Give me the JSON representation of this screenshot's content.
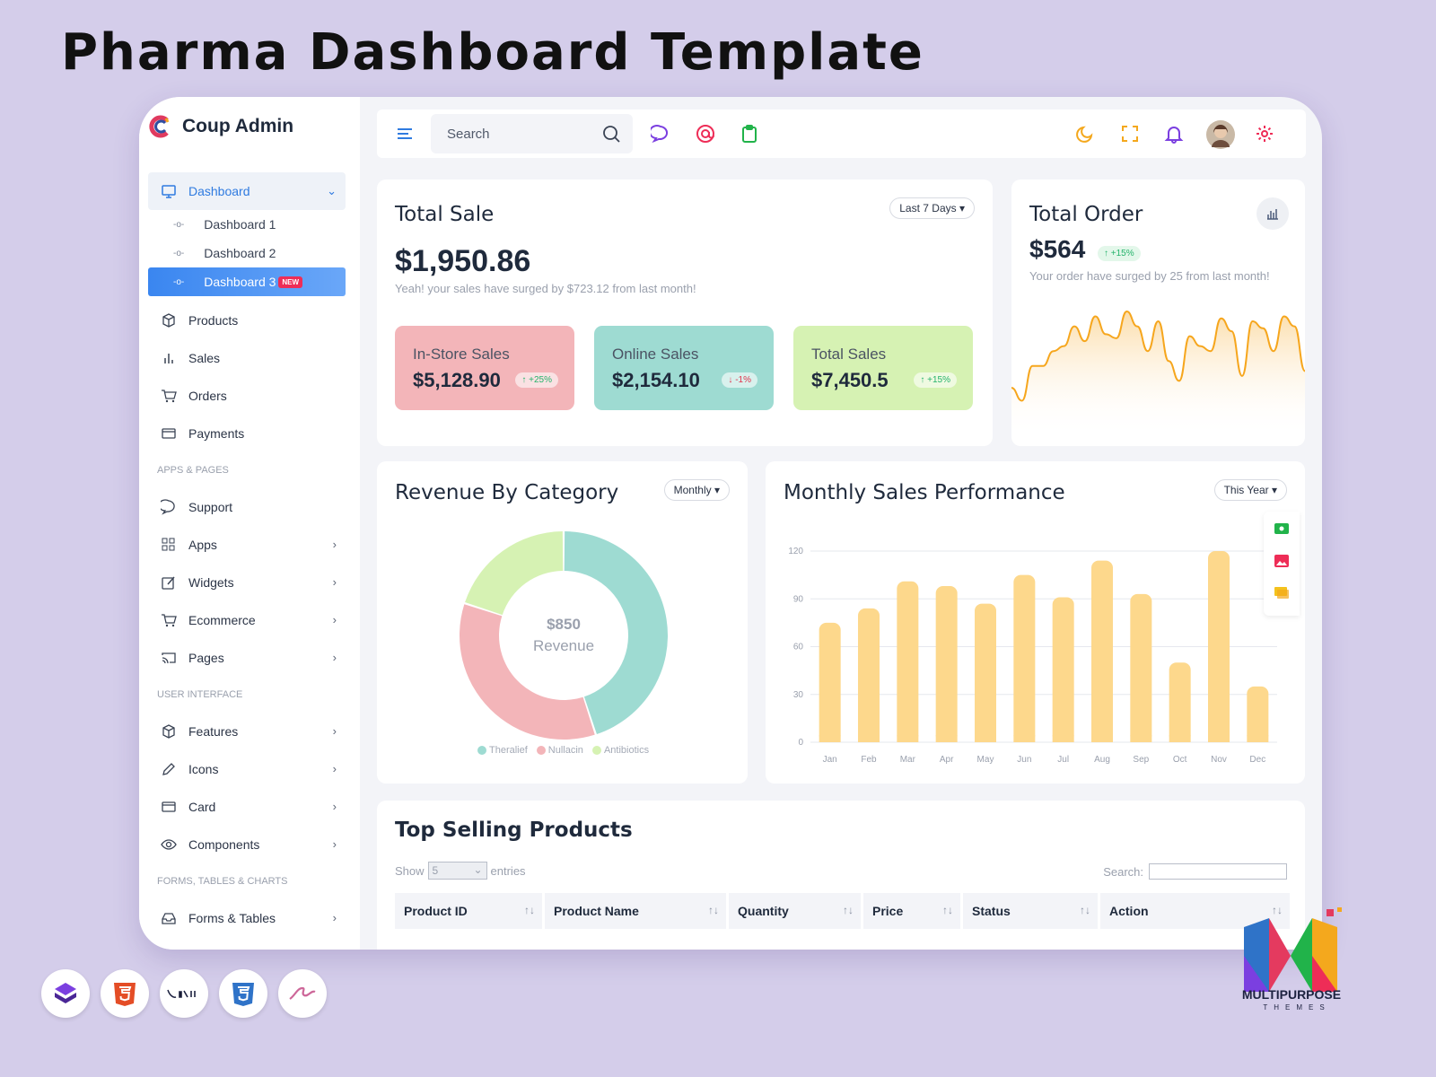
{
  "headline": "Pharma Dashboard Template",
  "brand": {
    "name": "Coup Admin"
  },
  "sidebar": {
    "dashboard": "Dashboard",
    "sub_items": [
      {
        "label": "Dashboard 1"
      },
      {
        "label": "Dashboard 2"
      },
      {
        "label": "Dashboard 3",
        "badge": "NEW"
      }
    ],
    "main_items": [
      {
        "label": "Products",
        "icon": "box-icon"
      },
      {
        "label": "Sales",
        "icon": "bar-chart-icon"
      },
      {
        "label": "Orders",
        "icon": "cart-icon"
      },
      {
        "label": "Payments",
        "icon": "card-icon"
      }
    ],
    "section_apps": "APPS & PAGES",
    "apps_items": [
      {
        "label": "Support",
        "icon": "chat-icon"
      },
      {
        "label": "Apps",
        "icon": "grid-icon"
      },
      {
        "label": "Widgets",
        "icon": "edit-icon"
      },
      {
        "label": "Ecommerce",
        "icon": "cart-icon"
      },
      {
        "label": "Pages",
        "icon": "cast-icon"
      }
    ],
    "section_ui": "USER INTERFACE",
    "ui_items": [
      {
        "label": "Features",
        "icon": "box-icon"
      },
      {
        "label": "Icons",
        "icon": "pen-icon"
      },
      {
        "label": "Card",
        "icon": "card-icon"
      },
      {
        "label": "Components",
        "icon": "eye-icon"
      }
    ],
    "section_forms": "FORMS, TABLES & CHARTS",
    "forms_items": [
      {
        "label": "Forms & Tables",
        "icon": "inbox-icon"
      }
    ]
  },
  "topbar": {
    "search_placeholder": "Search"
  },
  "total_sale": {
    "title": "Total Sale",
    "period": "Last 7 Days",
    "amount": "$1,950.86",
    "note": "Yeah! your sales have surged by $723.12 from last month!",
    "stats": [
      {
        "label": "In-Store Sales",
        "value": "$5,128.90",
        "change": "+25%",
        "dir": "up",
        "color": "#f3b5b9"
      },
      {
        "label": "Online Sales",
        "value": "$2,154.10",
        "change": "-1%",
        "dir": "down",
        "color": "#9edbd2"
      },
      {
        "label": "Total Sales",
        "value": "$7,450.5",
        "change": "+15%",
        "dir": "up",
        "color": "#d6f2b3"
      }
    ]
  },
  "total_order": {
    "title": "Total Order",
    "amount": "$564",
    "change": "+15%",
    "note": "Your order have surged by 25 from last month!"
  },
  "revenue": {
    "title": "Revenue By Category",
    "period": "Monthly",
    "center_value": "$850",
    "center_label": "Revenue",
    "legend": [
      {
        "name": "Theralief",
        "color": "#9edbd2"
      },
      {
        "name": "Nullacin",
        "color": "#f3b5b9"
      },
      {
        "name": "Antibiotics",
        "color": "#d6f2b3"
      }
    ]
  },
  "monthly": {
    "title": "Monthly Sales Performance",
    "period": "This Year"
  },
  "chart_data": [
    {
      "type": "pie",
      "title": "Revenue By Category",
      "categories": [
        "Theralief",
        "Nullacin",
        "Antibiotics"
      ],
      "values": [
        45,
        35,
        20
      ]
    },
    {
      "type": "bar",
      "title": "Monthly Sales Performance",
      "categories": [
        "Jan",
        "Feb",
        "Mar",
        "Apr",
        "May",
        "Jun",
        "Jul",
        "Aug",
        "Sep",
        "Oct",
        "Nov",
        "Dec"
      ],
      "values": [
        75,
        84,
        101,
        98,
        87,
        105,
        91,
        114,
        93,
        50,
        120,
        35
      ],
      "yticks": [
        "0",
        "30",
        "60",
        "90",
        "120"
      ],
      "ylim": [
        0,
        120
      ],
      "grid": true,
      "bar_color": "#fdd88c"
    },
    {
      "type": "area",
      "title": "Total Order",
      "values": [
        18,
        5,
        40,
        40,
        55,
        60,
        80,
        65,
        90,
        72,
        68,
        95,
        80,
        55,
        85,
        45,
        25,
        70,
        60,
        55,
        88,
        75,
        30,
        85,
        78,
        55,
        90,
        80,
        35
      ],
      "color": "#f6a61d"
    }
  ],
  "top_selling": {
    "title": "Top Selling Products",
    "show": "Show",
    "entries_value": "5",
    "entries": "entries",
    "search_label": "Search:",
    "columns": [
      "Product ID",
      "Product Name",
      "Quantity",
      "Price",
      "Status",
      "Action"
    ]
  },
  "colors": {
    "accent": "#2f7be0",
    "background": "#d4cdea"
  }
}
